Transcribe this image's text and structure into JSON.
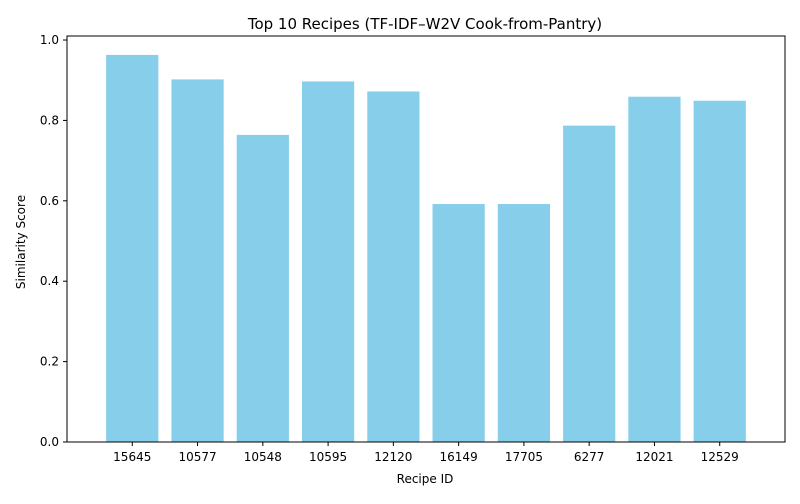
{
  "chart_data": {
    "type": "bar",
    "title": "Top 10 Recipes (TF-IDF–W2V Cook-from-Pantry)",
    "xlabel": "Recipe ID",
    "ylabel": "Similarity Score",
    "categories": [
      "15645",
      "10577",
      "10548",
      "10595",
      "12120",
      "16149",
      "17705",
      "6277",
      "12021",
      "12529"
    ],
    "values": [
      0.963,
      0.902,
      0.764,
      0.897,
      0.872,
      0.592,
      0.592,
      0.787,
      0.859,
      0.849
    ],
    "ylim": [
      0,
      1.01
    ],
    "yticks": [
      0.0,
      0.2,
      0.4,
      0.6,
      0.8,
      1.0
    ],
    "ytick_labels": [
      "0.0",
      "0.2",
      "0.4",
      "0.6",
      "0.8",
      "1.0"
    ],
    "grid": false,
    "bar_color": "#87ceeb"
  }
}
